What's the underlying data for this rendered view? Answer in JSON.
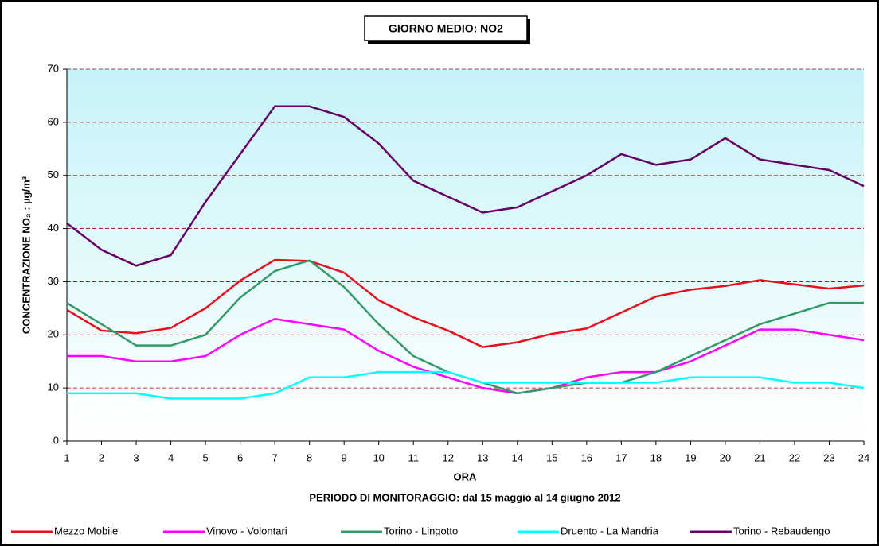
{
  "chart_data": {
    "type": "line",
    "title": "GIORNO MEDIO: NO2",
    "x_label": "ORA",
    "subtitle": "PERIODO DI MONITORAGGIO: dal 15 maggio al 14 giugno 2012",
    "y_label": "CONCENTRAZIONE NO₂ : µg/m³",
    "x": [
      1,
      2,
      3,
      4,
      5,
      6,
      7,
      8,
      9,
      10,
      11,
      12,
      13,
      14,
      15,
      16,
      17,
      18,
      19,
      20,
      21,
      22,
      23,
      24
    ],
    "xlim": [
      1,
      24
    ],
    "xticks": [
      1,
      2,
      3,
      4,
      5,
      6,
      7,
      8,
      9,
      10,
      11,
      12,
      13,
      14,
      15,
      16,
      17,
      18,
      19,
      20,
      21,
      22,
      23,
      24
    ],
    "ylim": [
      0,
      70
    ],
    "yticks": [
      0,
      10,
      20,
      30,
      40,
      50,
      60,
      70
    ],
    "grid": true,
    "legend": "bottom",
    "series": [
      {
        "name": "Mezzo Mobile",
        "color": "#e8101c",
        "values": [
          24.7,
          20.8,
          20.3,
          21.3,
          25,
          30.2,
          34.1,
          33.9,
          31.7,
          26.5,
          23.3,
          20.8,
          17.7,
          18.6,
          20.2,
          21.2,
          24.2,
          27.2,
          28.5,
          29.2,
          30.3,
          29.5,
          28.7,
          29.3
        ]
      },
      {
        "name": "Vinovo - Volontari",
        "color": "#ff00ff",
        "values": [
          16,
          16,
          15,
          15,
          16,
          20,
          23,
          22,
          21,
          17,
          14,
          12,
          10,
          9,
          10,
          12,
          13,
          13,
          15,
          18,
          21,
          21,
          20,
          19
        ]
      },
      {
        "name": "Torino - Lingotto",
        "color": "#339966",
        "values": [
          26,
          22,
          18,
          18,
          20,
          27,
          32,
          34,
          29,
          22,
          16,
          13,
          11,
          9,
          10,
          11,
          11,
          13,
          16,
          19,
          22,
          24,
          26,
          26
        ]
      },
      {
        "name": "Druento - La Mandria",
        "color": "#00ffff",
        "values": [
          9,
          9,
          9,
          8,
          8,
          8,
          9,
          12,
          12,
          13,
          13,
          13,
          11,
          11,
          11,
          11,
          11,
          11,
          12,
          12,
          12,
          11,
          11,
          10
        ]
      },
      {
        "name": "Torino - Rebaudengo",
        "color": "#660066",
        "values": [
          41,
          36,
          33,
          35,
          45,
          54,
          63,
          63,
          61,
          56,
          49,
          46,
          43,
          44,
          47,
          50,
          54,
          52,
          53,
          57,
          53,
          52,
          51,
          48
        ]
      }
    ]
  }
}
